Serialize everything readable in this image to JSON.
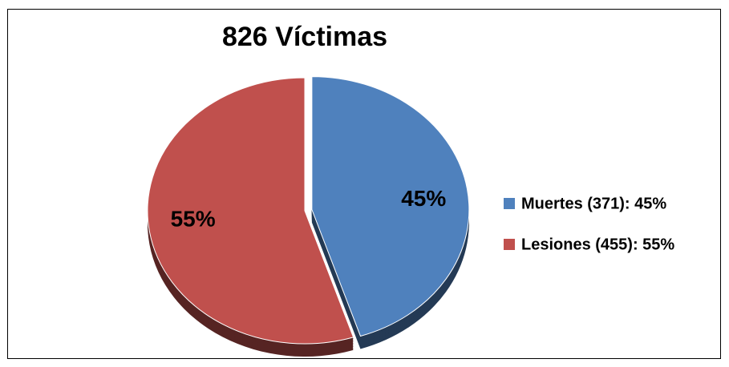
{
  "chart_data": {
    "type": "pie",
    "title": "826 Víctimas",
    "categories": [
      "Muertes (371): 45%",
      "Lesiones (455): 55%"
    ],
    "values": [
      45,
      55
    ],
    "value_labels": [
      "45%",
      "55%"
    ],
    "colors": [
      "#4f81bd",
      "#c0504d"
    ],
    "legend": "right"
  }
}
